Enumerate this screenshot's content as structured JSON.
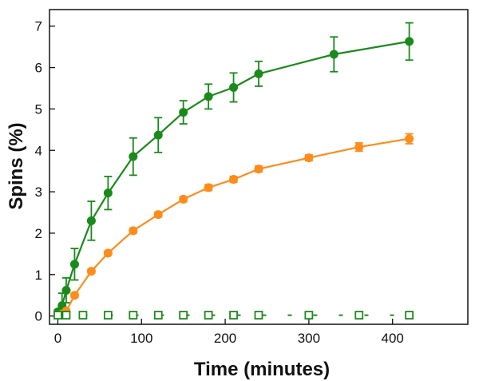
{
  "chart_data": {
    "type": "scatter",
    "xlabel": "Time (minutes)",
    "ylabel": "Spins (%)",
    "xlim": [
      -10,
      490
    ],
    "ylim": [
      -0.2,
      7.4
    ],
    "x_ticks": [
      0,
      100,
      200,
      300,
      400
    ],
    "y_ticks": [
      0,
      1,
      2,
      3,
      4,
      5,
      6,
      7
    ],
    "grid": false,
    "legend": "none",
    "series": [
      {
        "color": "#1a8a1a",
        "marker": "filled-circle",
        "fit_line": true,
        "x": [
          0,
          5,
          10,
          20,
          40,
          60,
          90,
          120,
          150,
          180,
          210,
          240,
          330,
          420
        ],
        "y": [
          0.1,
          0.25,
          0.62,
          1.25,
          2.3,
          2.97,
          3.85,
          4.37,
          4.92,
          5.3,
          5.52,
          5.85,
          6.32,
          6.63
        ],
        "err": [
          0.05,
          0.3,
          0.3,
          0.38,
          0.47,
          0.4,
          0.45,
          0.42,
          0.28,
          0.3,
          0.35,
          0.3,
          0.42,
          0.45
        ]
      },
      {
        "color": "#ff8c1a",
        "marker": "filled-circle",
        "fit_line": true,
        "x": [
          0,
          5,
          10,
          20,
          40,
          60,
          90,
          120,
          150,
          180,
          210,
          240,
          300,
          360,
          420
        ],
        "y": [
          0.02,
          0.05,
          0.12,
          0.5,
          1.08,
          1.52,
          2.06,
          2.45,
          2.82,
          3.1,
          3.3,
          3.55,
          3.82,
          4.08,
          4.28
        ],
        "err": [
          0.02,
          0.02,
          0.03,
          0.05,
          0.05,
          0.05,
          0.06,
          0.06,
          0.06,
          0.07,
          0.07,
          0.07,
          0.07,
          0.1,
          0.12
        ]
      },
      {
        "color": "#1a8a1a",
        "marker": "open-square",
        "fit_line": false,
        "x": [
          0,
          10,
          30,
          60,
          90,
          120,
          150,
          180,
          210,
          240,
          300,
          360,
          420
        ],
        "y": [
          0.02,
          0.02,
          0.02,
          0.02,
          0.02,
          0.02,
          0.02,
          0.02,
          0.02,
          0.02,
          0.02,
          0.02,
          0.02
        ]
      }
    ]
  }
}
